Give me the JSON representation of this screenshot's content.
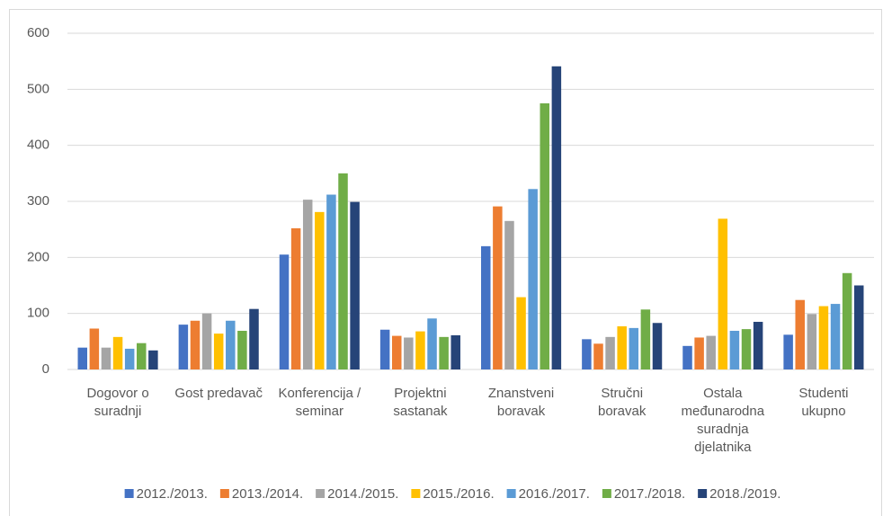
{
  "chart_data": {
    "type": "bar",
    "categories": [
      "Dogovor o suradnji",
      "Gost predavač",
      "Konferencija / seminar",
      "Projektni sastanak",
      "Znanstveni boravak",
      "Stručni boravak",
      "Ostala međunarodna suradnja djelatnika",
      "Studenti ukupno"
    ],
    "series": [
      {
        "name": "2012./2013.",
        "color": "#4472c4",
        "values": [
          39,
          80,
          205,
          71,
          220,
          54,
          42,
          62
        ]
      },
      {
        "name": "2013./2014.",
        "color": "#ed7d31",
        "values": [
          73,
          87,
          252,
          60,
          291,
          46,
          57,
          124
        ]
      },
      {
        "name": "2014./2015.",
        "color": "#a5a5a5",
        "values": [
          39,
          100,
          303,
          57,
          265,
          58,
          60,
          99
        ]
      },
      {
        "name": "2015./2016.",
        "color": "#ffc000",
        "values": [
          58,
          64,
          281,
          68,
          129,
          77,
          269,
          113
        ]
      },
      {
        "name": "2016./2017.",
        "color": "#5b9bd5",
        "values": [
          37,
          87,
          312,
          91,
          322,
          74,
          69,
          117
        ]
      },
      {
        "name": "2017./2018.",
        "color": "#70ad47",
        "values": [
          47,
          69,
          350,
          58,
          475,
          107,
          72,
          172
        ]
      },
      {
        "name": "2018./2019.",
        "color": "#264478",
        "values": [
          34,
          108,
          299,
          61,
          541,
          83,
          85,
          150
        ]
      }
    ],
    "ylim": [
      0,
      600
    ],
    "yticks": [
      0,
      100,
      200,
      300,
      400,
      500,
      600
    ],
    "grid": true,
    "legend": "bottom"
  }
}
